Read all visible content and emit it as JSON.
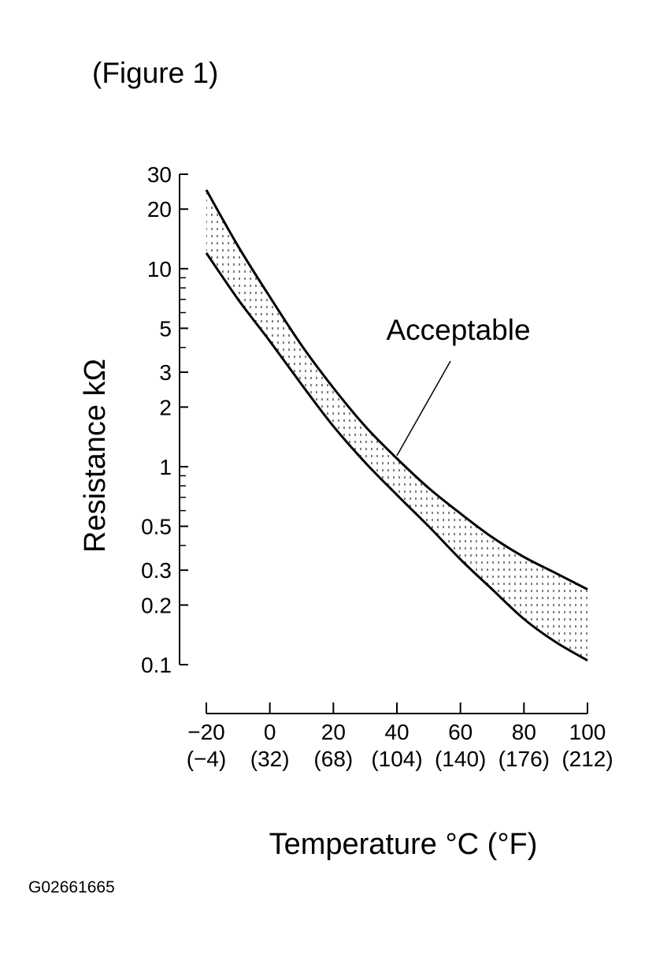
{
  "figure_label": "(Figure 1)",
  "image_code": "G02661665",
  "chart_data": {
    "type": "area",
    "title": "",
    "xlabel": "Temperature °C (°F)",
    "ylabel": "Resistance kΩ",
    "x_ticks": [
      {
        "c": -20,
        "label": "−20",
        "sub": "(−4)"
      },
      {
        "c": 0,
        "label": "0",
        "sub": "(32)"
      },
      {
        "c": 20,
        "label": "20",
        "sub": "(68)"
      },
      {
        "c": 40,
        "label": "40",
        "sub": "(104)"
      },
      {
        "c": 60,
        "label": "60",
        "sub": "(140)"
      },
      {
        "c": 80,
        "label": "80",
        "sub": "(176)"
      },
      {
        "c": 100,
        "label": "100",
        "sub": "(212)"
      }
    ],
    "y_scale": "log",
    "y_ticks": [
      {
        "v": 30,
        "label": "30"
      },
      {
        "v": 20,
        "label": "20"
      },
      {
        "v": 10,
        "label": "10"
      },
      {
        "v": 5,
        "label": "5"
      },
      {
        "v": 3,
        "label": "3"
      },
      {
        "v": 2,
        "label": "2"
      },
      {
        "v": 1,
        "label": "1"
      },
      {
        "v": 0.5,
        "label": "0.5"
      },
      {
        "v": 0.3,
        "label": "0.3"
      },
      {
        "v": 0.2,
        "label": "0.2"
      },
      {
        "v": 0.1,
        "label": "0.1"
      }
    ],
    "y_minor_ticks": [
      9,
      8,
      7,
      6,
      4,
      0.9,
      0.8,
      0.7,
      0.6,
      0.4
    ],
    "xlim": [
      -20,
      100
    ],
    "ylim": [
      0.1,
      30
    ],
    "series": [
      {
        "x": [
          -20,
          -10,
          0,
          10,
          20,
          30,
          40,
          50,
          60,
          70,
          80,
          90,
          100
        ],
        "y": [
          25,
          13,
          7.2,
          4.1,
          2.5,
          1.6,
          1.1,
          0.78,
          0.58,
          0.44,
          0.35,
          0.29,
          0.24
        ]
      },
      {
        "x": [
          -20,
          -10,
          0,
          10,
          20,
          30,
          40,
          50,
          60,
          70,
          80,
          90,
          100
        ],
        "y": [
          12,
          7,
          4.3,
          2.6,
          1.6,
          1.05,
          0.72,
          0.5,
          0.34,
          0.24,
          0.17,
          0.13,
          0.105
        ]
      }
    ],
    "annotations": [
      {
        "text": "Acceptable",
        "points_to": {
          "x": 40,
          "y": 1.0
        }
      }
    ],
    "grid": false,
    "legend": "none"
  }
}
